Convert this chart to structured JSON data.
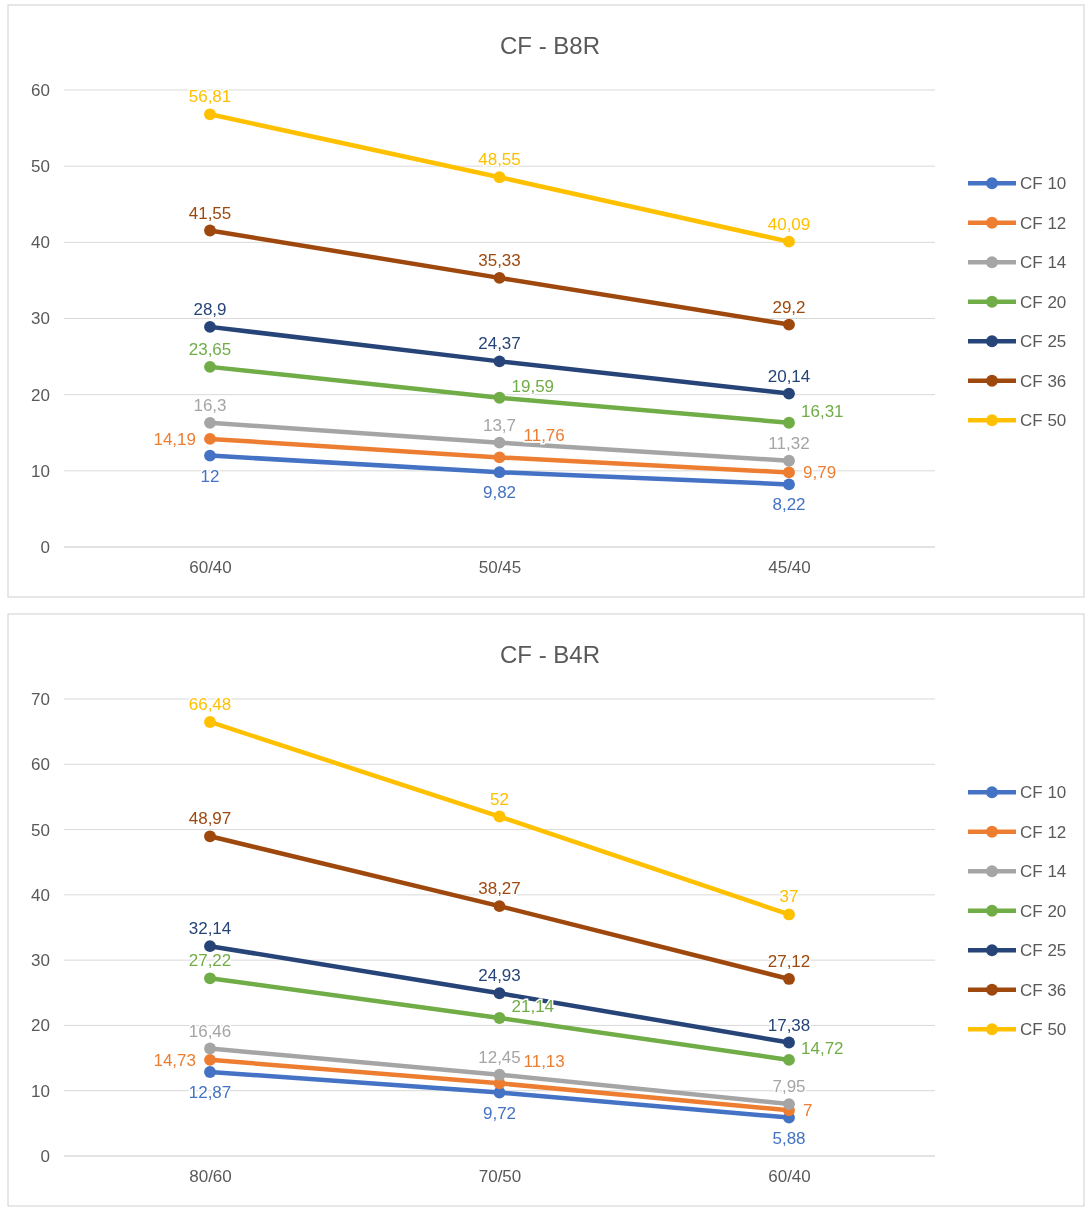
{
  "chart_data": [
    {
      "type": "line",
      "title": "CF - B8R",
      "categories": [
        "60/40",
        "50/45",
        "45/40"
      ],
      "ylim": [
        0,
        60
      ],
      "yticks": [
        0,
        10,
        20,
        30,
        40,
        50,
        60
      ],
      "grid": "y",
      "legend": "right",
      "marker": "circle",
      "series": [
        {
          "name": "CF 10",
          "color": "#4472c4",
          "values": [
            12,
            9.82,
            8.22
          ],
          "value_labels": [
            "12",
            "9,82",
            "8,22"
          ]
        },
        {
          "name": "CF 12",
          "color": "#ed7d31",
          "values": [
            14.19,
            11.76,
            9.79
          ],
          "value_labels": [
            "14,19",
            "11,76",
            "9,79"
          ]
        },
        {
          "name": "CF 14",
          "color": "#a5a5a5",
          "values": [
            16.3,
            13.7,
            11.32
          ],
          "value_labels": [
            "16,3",
            "13,7",
            "11,32"
          ]
        },
        {
          "name": "CF 20",
          "color": "#70ad47",
          "values": [
            23.65,
            19.59,
            16.31
          ],
          "value_labels": [
            "23,65",
            "19,59",
            "16,31"
          ]
        },
        {
          "name": "CF 25",
          "color": "#264478",
          "values": [
            28.9,
            24.37,
            20.14
          ],
          "value_labels": [
            "28,9",
            "24,37",
            "20,14"
          ]
        },
        {
          "name": "CF 36",
          "color": "#9e480e",
          "values": [
            41.55,
            35.33,
            29.2
          ],
          "value_labels": [
            "41,55",
            "35,33",
            "29,2"
          ]
        },
        {
          "name": "CF 50",
          "color": "#ffc000",
          "values": [
            56.81,
            48.55,
            40.09
          ],
          "value_labels": [
            "56,81",
            "48,55",
            "40,09"
          ]
        }
      ]
    },
    {
      "type": "line",
      "title": "CF - B4R",
      "categories": [
        "80/60",
        "70/50",
        "60/40"
      ],
      "ylim": [
        0,
        70
      ],
      "yticks": [
        0,
        10,
        20,
        30,
        40,
        50,
        60,
        70
      ],
      "grid": "y",
      "legend": "right",
      "marker": "circle",
      "series": [
        {
          "name": "CF 10",
          "color": "#4472c4",
          "values": [
            12.87,
            9.72,
            5.88
          ],
          "value_labels": [
            "12,87",
            "9,72",
            "5,88"
          ]
        },
        {
          "name": "CF 12",
          "color": "#ed7d31",
          "values": [
            14.73,
            11.13,
            7
          ],
          "value_labels": [
            "14,73",
            "11,13",
            "7"
          ]
        },
        {
          "name": "CF 14",
          "color": "#a5a5a5",
          "values": [
            16.46,
            12.45,
            7.95
          ],
          "value_labels": [
            "16,46",
            "12,45",
            "7,95"
          ]
        },
        {
          "name": "CF 20",
          "color": "#70ad47",
          "values": [
            27.22,
            21.14,
            14.72
          ],
          "value_labels": [
            "27,22",
            "21,14",
            "14,72"
          ]
        },
        {
          "name": "CF 25",
          "color": "#264478",
          "values": [
            32.14,
            24.93,
            17.38
          ],
          "value_labels": [
            "32,14",
            "24,93",
            "17,38"
          ]
        },
        {
          "name": "CF 36",
          "color": "#9e480e",
          "values": [
            48.97,
            38.27,
            27.12
          ],
          "value_labels": [
            "48,97",
            "38,27",
            "27,12"
          ]
        },
        {
          "name": "CF 50",
          "color": "#ffc000",
          "values": [
            66.48,
            52,
            37
          ],
          "value_labels": [
            "66,48",
            "52",
            "37"
          ]
        }
      ]
    }
  ]
}
